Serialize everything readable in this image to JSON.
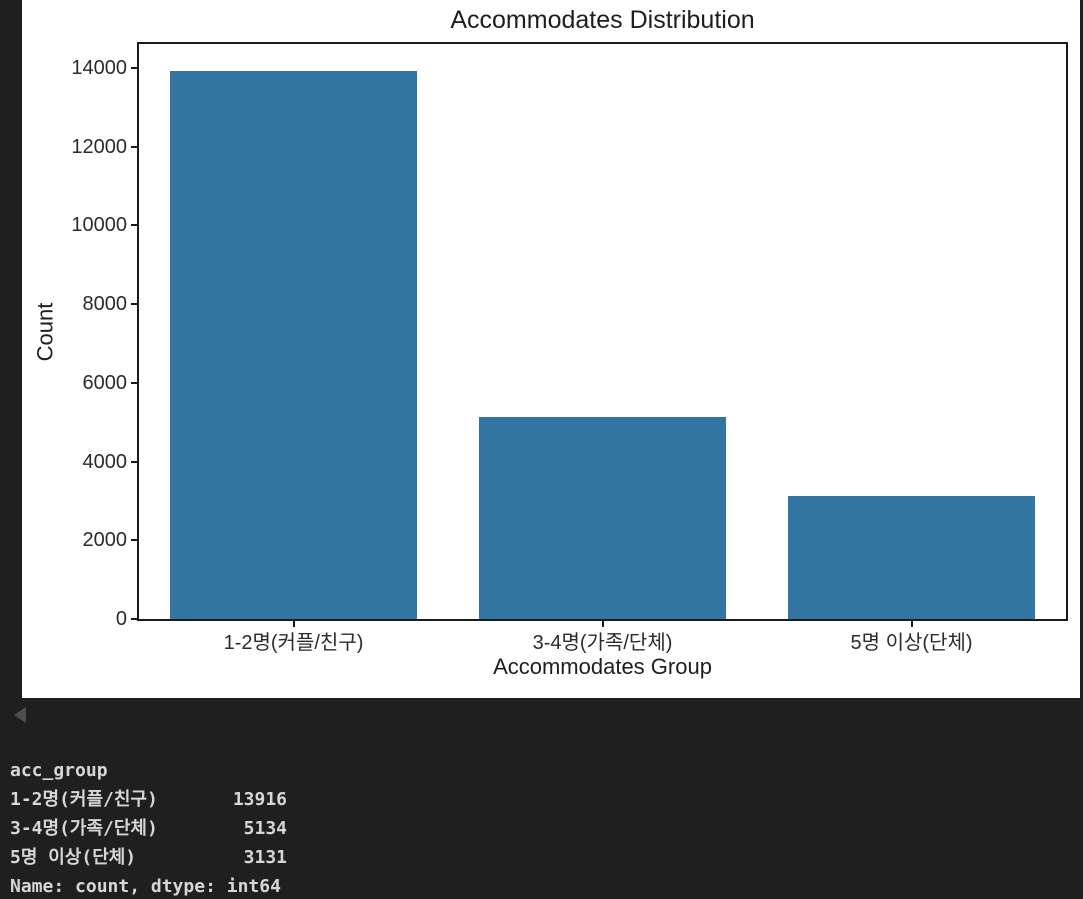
{
  "page": {
    "background": "#1f1f20",
    "figure_background": "#ffffff"
  },
  "chart_data": {
    "type": "bar",
    "title": "Accommodates Distribution",
    "xlabel": "Accommodates Group",
    "ylabel": "Count",
    "categories": [
      "1-2명(커플/친구)",
      "3-4명(가족/단체)",
      "5명 이상(단체)"
    ],
    "values": [
      13916,
      5134,
      3131
    ],
    "yticks": [
      0,
      2000,
      4000,
      6000,
      8000,
      10000,
      12000,
      14000
    ],
    "ylim": [
      0,
      14612
    ],
    "bar_color": "#3274a2",
    "bar_width_fraction": 0.8,
    "grid": false,
    "legend": null,
    "spine_color": "#1b1b1b"
  },
  "output_console": {
    "collapse_icon": "left-triangle",
    "text_color": "#d7d7d7",
    "lines": [
      {
        "label": "acc_group",
        "value": ""
      },
      {
        "label": "1-2명(커플/친구)",
        "value": "13916"
      },
      {
        "label": "3-4명(가족/단체)",
        "value": "5134"
      },
      {
        "label": "5명 이상(단체)",
        "value": "3131"
      },
      {
        "label": "Name: count, dtype: int64",
        "value": ""
      }
    ]
  }
}
